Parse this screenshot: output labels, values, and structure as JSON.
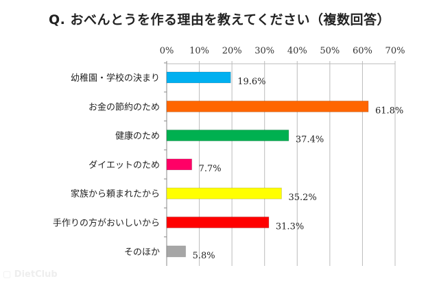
{
  "chart_data": {
    "type": "bar",
    "orientation": "horizontal",
    "title": "Q. おべんとうを作る理由を教えてください（複数回答）",
    "categories": [
      "幼稚園・学校の決まり",
      "お金の節約のため",
      "健康のため",
      "ダイエットのため",
      "家族から頼まれたから",
      "手作りの方がおいしいから",
      "そのほか"
    ],
    "values": [
      19.6,
      61.8,
      37.4,
      7.7,
      35.2,
      31.3,
      5.8
    ],
    "value_labels": [
      "19.6%",
      "61.8%",
      "37.4%",
      "7.7%",
      "35.2%",
      "31.3%",
      "5.8%"
    ],
    "colors": [
      "#00b0f0",
      "#ff6600",
      "#00b050",
      "#ff0066",
      "#ffff00",
      "#ff0000",
      "#a6a6a6"
    ],
    "xlim": [
      0,
      70
    ],
    "ticks": [
      0,
      10,
      20,
      30,
      40,
      50,
      60,
      70
    ],
    "tick_labels": [
      "0%",
      "10%",
      "20%",
      "30%",
      "40%",
      "50%",
      "60%",
      "70%"
    ],
    "xlabel": "",
    "ylabel": "",
    "grid": true,
    "axis_position": "top"
  },
  "watermark": "DietClub"
}
